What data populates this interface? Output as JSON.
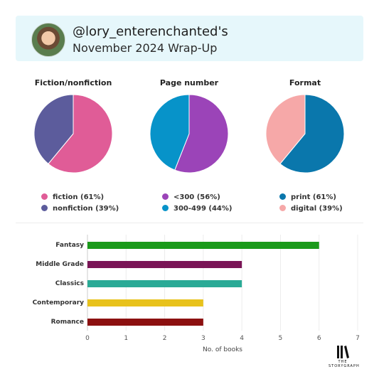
{
  "header": {
    "username": "@lory_enterenchanted's",
    "subtitle": "November 2024 Wrap-Up"
  },
  "colors": {
    "header_bg": "#e6f7fb",
    "fiction": "#e05c97",
    "nonfiction": "#5c5c9c",
    "under300": "#9b44b8",
    "p300_499": "#0793c9",
    "print": "#0a77ac",
    "digital": "#f6a8a8"
  },
  "brand": {
    "name": "THE STORYGRAPH",
    "icon": "storygraph-logo-icon"
  },
  "chart_data": [
    {
      "type": "pie",
      "title": "Fiction/nonfiction",
      "slices": [
        {
          "label": "fiction (61%)",
          "value": 61,
          "color": "#e05c97"
        },
        {
          "label": "nonfiction (39%)",
          "value": 39,
          "color": "#5c5c9c"
        }
      ]
    },
    {
      "type": "pie",
      "title": "Page number",
      "slices": [
        {
          "label": "<300 (56%)",
          "value": 56,
          "color": "#9b44b8"
        },
        {
          "label": "300-499 (44%)",
          "value": 44,
          "color": "#0793c9"
        }
      ]
    },
    {
      "type": "pie",
      "title": "Format",
      "slices": [
        {
          "label": "print (61%)",
          "value": 61,
          "color": "#0a77ac"
        },
        {
          "label": "digital (39%)",
          "value": 39,
          "color": "#f6a8a8"
        }
      ]
    },
    {
      "type": "bar",
      "orientation": "horizontal",
      "categories": [
        "Fantasy",
        "Middle Grade",
        "Classics",
        "Contemporary",
        "Romance"
      ],
      "values": [
        6,
        4,
        4,
        3,
        3
      ],
      "colors": [
        "#1a9a1a",
        "#7a1456",
        "#2aaa96",
        "#e8c21c",
        "#8c1010"
      ],
      "xlabel": "No. of books",
      "xlim": [
        0,
        7
      ],
      "xticks": [
        "0",
        "1",
        "2",
        "3",
        "4",
        "5",
        "6",
        "7"
      ],
      "grid": true
    }
  ]
}
